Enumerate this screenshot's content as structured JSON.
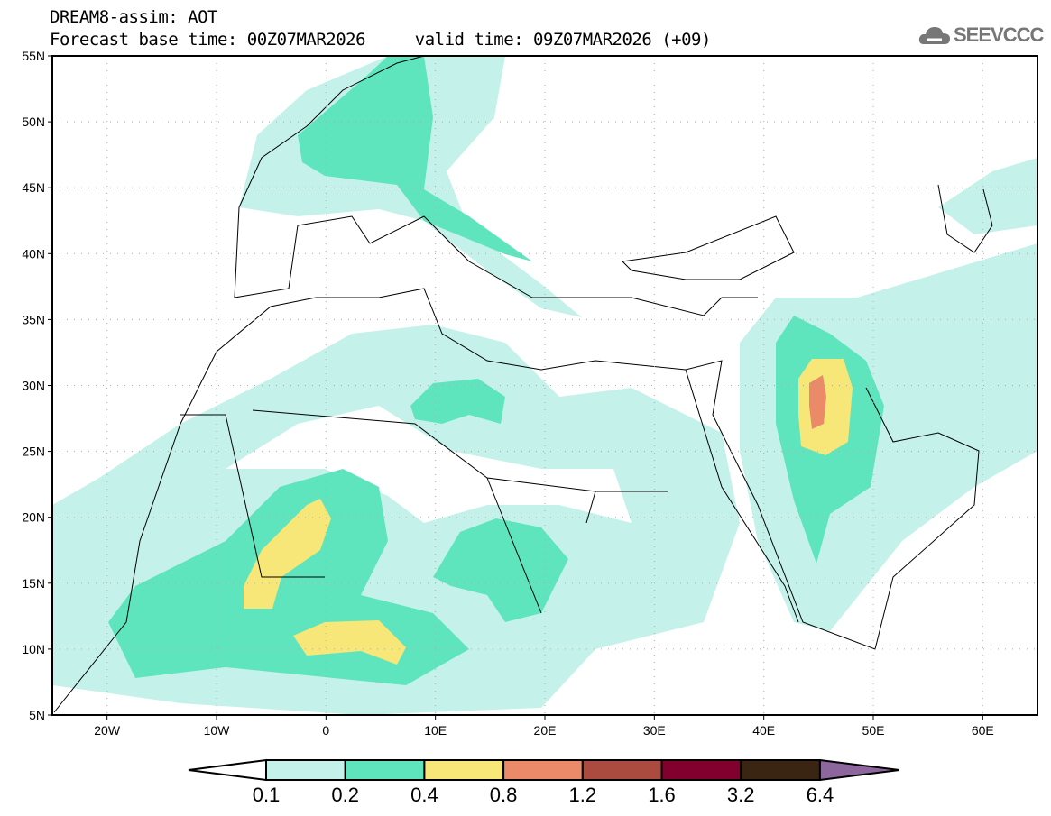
{
  "header": {
    "title": "DREAM8-assim: AOT",
    "base_time_label": "Forecast base time: 00Z07MAR2026",
    "valid_time_label": "valid time: 09Z07MAR2026 (+09)",
    "logo_text": "SEEVCCC"
  },
  "map": {
    "lon_range": [
      -25,
      65
    ],
    "lat_range": [
      5,
      55
    ],
    "lat_labels": [
      "5N",
      "10N",
      "15N",
      "20N",
      "25N",
      "30N",
      "35N",
      "40N",
      "45N",
      "50N",
      "55N"
    ],
    "lon_labels": [
      "20W",
      "10W",
      "0",
      "10E",
      "20E",
      "30E",
      "40E",
      "50E",
      "60E"
    ]
  },
  "legend": {
    "levels": [
      "0.1",
      "0.2",
      "0.4",
      "0.8",
      "1.2",
      "1.6",
      "3.2",
      "6.4"
    ],
    "colors": [
      "#ffffff",
      "#c4f2ea",
      "#5fe5bd",
      "#f7e678",
      "#ea8a69",
      "#ab4b40",
      "#82002e",
      "#3a2412",
      "#8e669e"
    ]
  }
}
